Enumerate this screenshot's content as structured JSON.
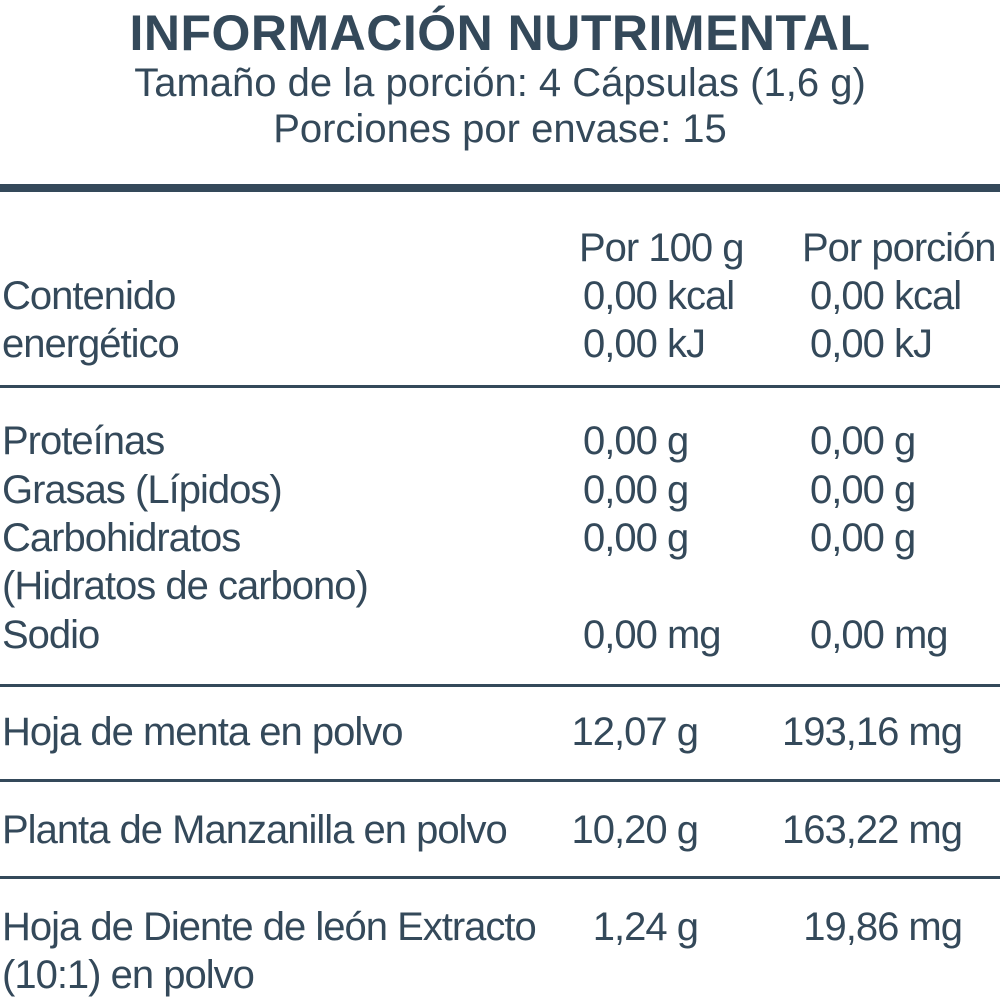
{
  "header": {
    "title": "INFORMACIÓN NUTRIMENTAL",
    "serving_size": "Tamaño de la porción: 4 Cápsulas (1,6 g)",
    "servings_per_container": "Porciones por envase: 15"
  },
  "columns": {
    "per_100g": "Por 100 g",
    "per_serving": "Por porción"
  },
  "energy": {
    "label_line1": "Contenido",
    "label_line2": "energético",
    "kcal_100g": "0,00 kcal",
    "kcal_serving": "0,00 kcal",
    "kj_100g": "0,00 kJ",
    "kj_serving": "0,00 kJ"
  },
  "nutrients": [
    {
      "label": "Proteínas",
      "per_100g": "0,00 g",
      "per_serving": "0,00 g"
    },
    {
      "label": "Grasas (Lípidos)",
      "per_100g": "0,00 g",
      "per_serving": "0,00 g"
    },
    {
      "label": "Carbohidratos",
      "label_line2": "(Hidratos de carbono)",
      "per_100g": "0,00 g",
      "per_serving": "0,00 g"
    },
    {
      "label": "Sodio",
      "per_100g": "0,00 mg",
      "per_serving": "0,00 mg"
    }
  ],
  "ingredients": [
    {
      "label": "Hoja de menta en polvo",
      "per_100g": "12,07 g",
      "per_serving": "193,16 mg"
    },
    {
      "label": "Planta de Manzanilla en polvo",
      "per_100g": "10,20 g",
      "per_serving": "163,22 mg"
    },
    {
      "label": "Hoja de Diente de león Extracto",
      "label_line2": "(10:1) en polvo",
      "per_100g": "1,24 g",
      "per_serving": "19,86 mg"
    }
  ],
  "colors": {
    "text": "#34495a",
    "background": "#ffffff"
  }
}
